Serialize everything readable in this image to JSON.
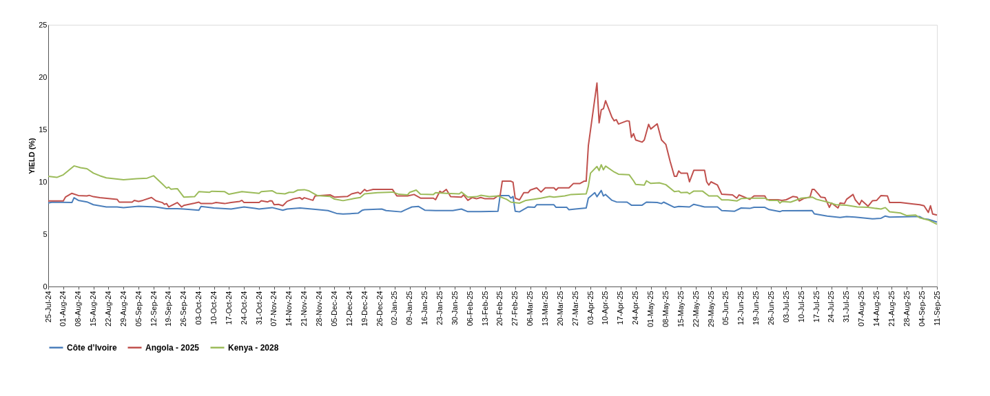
{
  "chart_data": {
    "type": "line",
    "ylabel": "YIELD (%)",
    "ylim": [
      0,
      25
    ],
    "yticks": [
      0,
      5,
      10,
      15,
      20,
      25
    ],
    "xlim": [
      "2024-07-25",
      "2025-09-11"
    ],
    "xticks": [
      {
        "value": "2024-07-25",
        "label": "25-Jul-24"
      },
      {
        "value": "2024-08-01",
        "label": "01-Aug-24"
      },
      {
        "value": "2024-08-08",
        "label": "08-Aug-24"
      },
      {
        "value": "2024-08-15",
        "label": "15-Aug-24"
      },
      {
        "value": "2024-08-22",
        "label": "22-Aug-24"
      },
      {
        "value": "2024-08-29",
        "label": "29-Aug-24"
      },
      {
        "value": "2024-09-05",
        "label": "05-Sep-24"
      },
      {
        "value": "2024-09-12",
        "label": "12-Sep-24"
      },
      {
        "value": "2024-09-19",
        "label": "19-Sep-24"
      },
      {
        "value": "2024-09-26",
        "label": "26-Sep-24"
      },
      {
        "value": "2024-10-03",
        "label": "03-Oct-24"
      },
      {
        "value": "2024-10-10",
        "label": "10-Oct-24"
      },
      {
        "value": "2024-10-17",
        "label": "17-Oct-24"
      },
      {
        "value": "2024-10-24",
        "label": "24-Oct-24"
      },
      {
        "value": "2024-10-31",
        "label": "31-Oct-24"
      },
      {
        "value": "2024-11-07",
        "label": "07-Nov-24"
      },
      {
        "value": "2024-11-14",
        "label": "14-Nov-24"
      },
      {
        "value": "2024-11-21",
        "label": "21-Nov-24"
      },
      {
        "value": "2024-11-28",
        "label": "28-Nov-24"
      },
      {
        "value": "2024-12-05",
        "label": "05-Dec-24"
      },
      {
        "value": "2024-12-12",
        "label": "12-Dec-24"
      },
      {
        "value": "2024-12-19",
        "label": "19-Dec-24"
      },
      {
        "value": "2024-12-26",
        "label": "26-Dec-24"
      },
      {
        "value": "2025-01-02",
        "label": "02-Jan-25"
      },
      {
        "value": "2025-01-09",
        "label": "09-Jan-25"
      },
      {
        "value": "2025-01-16",
        "label": "16-Jan-25"
      },
      {
        "value": "2025-01-23",
        "label": "23-Jan-25"
      },
      {
        "value": "2025-01-30",
        "label": "30-Jan-25"
      },
      {
        "value": "2025-02-06",
        "label": "06-Feb-25"
      },
      {
        "value": "2025-02-13",
        "label": "13-Feb-25"
      },
      {
        "value": "2025-02-20",
        "label": "20-Feb-25"
      },
      {
        "value": "2025-02-27",
        "label": "27-Feb-25"
      },
      {
        "value": "2025-03-06",
        "label": "06-Mar-25"
      },
      {
        "value": "2025-03-13",
        "label": "13-Mar-25"
      },
      {
        "value": "2025-03-20",
        "label": "20-Mar-25"
      },
      {
        "value": "2025-03-27",
        "label": "27-Mar-25"
      },
      {
        "value": "2025-04-03",
        "label": "03-Apr-25"
      },
      {
        "value": "2025-04-10",
        "label": "10-Apr-25"
      },
      {
        "value": "2025-04-17",
        "label": "17-Apr-25"
      },
      {
        "value": "2025-04-24",
        "label": "24-Apr-25"
      },
      {
        "value": "2025-05-01",
        "label": "01-May-25"
      },
      {
        "value": "2025-05-08",
        "label": "08-May-25"
      },
      {
        "value": "2025-05-15",
        "label": "15-May-25"
      },
      {
        "value": "2025-05-22",
        "label": "22-May-25"
      },
      {
        "value": "2025-05-29",
        "label": "29-May-25"
      },
      {
        "value": "2025-06-05",
        "label": "05-Jun-25"
      },
      {
        "value": "2025-06-12",
        "label": "12-Jun-25"
      },
      {
        "value": "2025-06-19",
        "label": "19-Jun-25"
      },
      {
        "value": "2025-06-26",
        "label": "26-Jun-25"
      },
      {
        "value": "2025-07-03",
        "label": "03-Jul-25"
      },
      {
        "value": "2025-07-10",
        "label": "10-Jul-25"
      },
      {
        "value": "2025-07-17",
        "label": "17-Jul-25"
      },
      {
        "value": "2025-07-24",
        "label": "24-Jul-25"
      },
      {
        "value": "2025-07-31",
        "label": "31-Jul-25"
      },
      {
        "value": "2025-08-07",
        "label": "07-Aug-25"
      },
      {
        "value": "2025-08-14",
        "label": "14-Aug-25"
      },
      {
        "value": "2025-08-21",
        "label": "21-Aug-25"
      },
      {
        "value": "2025-08-28",
        "label": "28-Aug-25"
      },
      {
        "value": "2025-09-04",
        "label": "04-Sep-25"
      },
      {
        "value": "2025-09-11",
        "label": "11-Sep-25"
      }
    ],
    "grid": false,
    "legend": "bottom",
    "series": [
      {
        "name": "Côte d’Ivoire",
        "color": "#4a7ebb",
        "x": [
          "2024-07-25",
          "2024-07-27",
          "2024-08-05",
          "2024-08-06",
          "2024-08-08",
          "2024-08-12",
          "2024-08-15",
          "2024-08-21",
          "2024-08-26",
          "2024-08-29",
          "2024-09-05",
          "2024-09-13",
          "2024-09-18",
          "2024-09-23",
          "2024-09-26",
          "2024-10-03",
          "2024-10-04",
          "2024-10-10",
          "2024-10-18",
          "2024-10-24",
          "2024-10-29",
          "2024-10-31",
          "2024-11-06",
          "2024-11-11",
          "2024-11-13",
          "2024-11-19",
          "2024-11-27",
          "2024-12-02",
          "2024-12-06",
          "2024-12-09",
          "2024-12-16",
          "2024-12-18",
          "2024-12-19",
          "2024-12-27",
          "2024-12-29",
          "2025-01-05",
          "2025-01-07",
          "2025-01-10",
          "2025-01-13",
          "2025-01-16",
          "2025-01-21",
          "2025-01-29",
          "2025-02-02",
          "2025-02-05",
          "2025-02-11",
          "2025-02-19",
          "2025-02-20",
          "2025-02-24",
          "2025-02-25",
          "2025-02-26",
          "2025-02-27",
          "2025-03-01",
          "2025-03-05",
          "2025-03-08",
          "2025-03-09",
          "2025-03-17",
          "2025-03-18",
          "2025-03-23",
          "2025-03-24",
          "2025-03-27",
          "2025-04-01",
          "2025-04-02",
          "2025-04-05",
          "2025-04-06",
          "2025-04-08",
          "2025-04-09",
          "2025-04-10",
          "2025-04-13",
          "2025-04-15",
          "2025-04-20",
          "2025-04-22",
          "2025-04-27",
          "2025-04-29",
          "2025-05-04",
          "2025-05-06",
          "2025-05-07",
          "2025-05-12",
          "2025-05-14",
          "2025-05-19",
          "2025-05-21",
          "2025-05-26",
          "2025-06-01",
          "2025-06-03",
          "2025-06-09",
          "2025-06-12",
          "2025-06-16",
          "2025-06-18",
          "2025-06-23",
          "2025-06-25",
          "2025-06-30",
          "2025-07-01",
          "2025-07-15",
          "2025-07-16",
          "2025-07-22",
          "2025-07-28",
          "2025-07-31",
          "2025-08-04",
          "2025-08-12",
          "2025-08-16",
          "2025-08-18",
          "2025-08-20",
          "2025-08-31",
          "2025-09-03",
          "2025-09-05",
          "2025-09-07",
          "2025-09-11"
        ],
        "values": [
          7.98,
          8.06,
          8.02,
          8.48,
          8.23,
          8.08,
          7.81,
          7.6,
          7.6,
          7.54,
          7.67,
          7.6,
          7.44,
          7.44,
          7.4,
          7.29,
          7.65,
          7.5,
          7.4,
          7.6,
          7.46,
          7.4,
          7.54,
          7.29,
          7.4,
          7.5,
          7.35,
          7.25,
          6.98,
          6.92,
          7.0,
          7.29,
          7.33,
          7.4,
          7.25,
          7.13,
          7.33,
          7.6,
          7.65,
          7.29,
          7.25,
          7.25,
          7.4,
          7.15,
          7.15,
          7.19,
          8.69,
          8.69,
          8.44,
          8.6,
          7.19,
          7.13,
          7.6,
          7.56,
          7.81,
          7.81,
          7.56,
          7.56,
          7.33,
          7.4,
          7.5,
          8.44,
          8.96,
          8.58,
          9.17,
          8.65,
          8.79,
          8.23,
          8.08,
          8.06,
          7.77,
          7.77,
          8.06,
          8.02,
          7.92,
          8.06,
          7.56,
          7.65,
          7.6,
          7.85,
          7.6,
          7.6,
          7.25,
          7.19,
          7.5,
          7.46,
          7.56,
          7.56,
          7.35,
          7.15,
          7.23,
          7.25,
          6.94,
          6.73,
          6.6,
          6.67,
          6.63,
          6.46,
          6.52,
          6.73,
          6.63,
          6.67,
          6.67,
          6.46,
          6.42,
          6.15
        ]
      },
      {
        "name": "Angola - 2025",
        "color": "#c0504d",
        "x": [
          "2024-07-25",
          "2024-08-01",
          "2024-08-02",
          "2024-08-05",
          "2024-08-08",
          "2024-08-12",
          "2024-08-13",
          "2024-08-15",
          "2024-08-18",
          "2024-08-26",
          "2024-08-27",
          "2024-09-02",
          "2024-09-03",
          "2024-09-05",
          "2024-09-07",
          "2024-09-11",
          "2024-09-13",
          "2024-09-16",
          "2024-09-17",
          "2024-09-18",
          "2024-09-19",
          "2024-09-23",
          "2024-09-25",
          "2024-09-26",
          "2024-10-01",
          "2024-10-03",
          "2024-10-04",
          "2024-10-09",
          "2024-10-11",
          "2024-10-15",
          "2024-10-18",
          "2024-10-22",
          "2024-10-23",
          "2024-10-24",
          "2024-10-31",
          "2024-11-01",
          "2024-11-04",
          "2024-11-05",
          "2024-11-06",
          "2024-11-07",
          "2024-11-09",
          "2024-11-11",
          "2024-11-13",
          "2024-11-16",
          "2024-11-19",
          "2024-11-20",
          "2024-11-21",
          "2024-11-25",
          "2024-11-26",
          "2024-12-03",
          "2024-12-05",
          "2024-12-11",
          "2024-12-13",
          "2024-12-16",
          "2024-12-17",
          "2024-12-19",
          "2024-12-20",
          "2024-12-23",
          "2025-01-01",
          "2025-01-03",
          "2025-01-08",
          "2025-01-11",
          "2025-01-14",
          "2025-01-20",
          "2025-01-21",
          "2025-01-23",
          "2025-01-24",
          "2025-01-26",
          "2025-01-28",
          "2025-02-02",
          "2025-02-03",
          "2025-02-05",
          "2025-02-07",
          "2025-02-09",
          "2025-02-11",
          "2025-02-13",
          "2025-02-17",
          "2025-02-19",
          "2025-02-20",
          "2025-02-21",
          "2025-02-25",
          "2025-02-26",
          "2025-02-27",
          "2025-03-01",
          "2025-03-03",
          "2025-03-05",
          "2025-03-06",
          "2025-03-09",
          "2025-03-11",
          "2025-03-13",
          "2025-03-17",
          "2025-03-18",
          "2025-03-19",
          "2025-03-24",
          "2025-03-26",
          "2025-03-29",
          "2025-03-31",
          "2025-04-01",
          "2025-04-02",
          "2025-04-06",
          "2025-04-07",
          "2025-04-08",
          "2025-04-09",
          "2025-04-10",
          "2025-04-13",
          "2025-04-14",
          "2025-04-15",
          "2025-04-16",
          "2025-04-20",
          "2025-04-21",
          "2025-04-22",
          "2025-04-23",
          "2025-04-24",
          "2025-04-27",
          "2025-04-28",
          "2025-04-30",
          "2025-05-01",
          "2025-05-04",
          "2025-05-06",
          "2025-05-08",
          "2025-05-10",
          "2025-05-12",
          "2025-05-13",
          "2025-05-14",
          "2025-05-15",
          "2025-05-18",
          "2025-05-19",
          "2025-05-21",
          "2025-05-26",
          "2025-05-27",
          "2025-05-28",
          "2025-05-29",
          "2025-06-01",
          "2025-06-03",
          "2025-06-08",
          "2025-06-10",
          "2025-06-11",
          "2025-06-16",
          "2025-06-18",
          "2025-06-23",
          "2025-06-24",
          "2025-06-29",
          "2025-07-01",
          "2025-07-03",
          "2025-07-06",
          "2025-07-08",
          "2025-07-09",
          "2025-07-11",
          "2025-07-14",
          "2025-07-15",
          "2025-07-16",
          "2025-07-18",
          "2025-07-19",
          "2025-07-21",
          "2025-07-23",
          "2025-07-24",
          "2025-07-27",
          "2025-07-28",
          "2025-07-30",
          "2025-07-31",
          "2025-08-03",
          "2025-08-04",
          "2025-08-06",
          "2025-08-07",
          "2025-08-10",
          "2025-08-12",
          "2025-08-14",
          "2025-08-16",
          "2025-08-19",
          "2025-08-20",
          "2025-08-25",
          "2025-08-31",
          "2025-09-03",
          "2025-09-05",
          "2025-09-07",
          "2025-09-08",
          "2025-09-09",
          "2025-09-11"
        ],
        "values": [
          8.17,
          8.17,
          8.54,
          8.9,
          8.69,
          8.65,
          8.71,
          8.58,
          8.48,
          8.33,
          8.06,
          8.06,
          8.23,
          8.13,
          8.23,
          8.5,
          8.19,
          8.02,
          7.85,
          7.92,
          7.6,
          8.02,
          7.6,
          7.75,
          7.96,
          8.06,
          7.92,
          7.92,
          8.02,
          7.92,
          8.02,
          8.13,
          8.23,
          8.02,
          8.02,
          8.19,
          8.08,
          8.19,
          8.17,
          7.81,
          7.85,
          7.71,
          8.13,
          8.38,
          8.48,
          8.33,
          8.48,
          8.23,
          8.65,
          8.75,
          8.54,
          8.6,
          8.85,
          9.0,
          8.85,
          9.27,
          9.12,
          9.27,
          9.27,
          8.65,
          8.65,
          8.79,
          8.44,
          8.44,
          8.29,
          9.1,
          8.96,
          9.27,
          8.58,
          8.54,
          8.75,
          8.23,
          8.5,
          8.38,
          8.5,
          8.38,
          8.38,
          8.65,
          8.69,
          10.06,
          10.06,
          9.96,
          8.44,
          8.27,
          8.96,
          8.96,
          9.21,
          9.42,
          9.02,
          9.42,
          9.42,
          9.21,
          9.42,
          9.42,
          9.83,
          9.83,
          10.06,
          10.06,
          13.44,
          19.44,
          15.63,
          16.88,
          16.98,
          17.75,
          16.15,
          15.83,
          15.94,
          15.52,
          15.83,
          15.79,
          14.25,
          14.6,
          14.0,
          13.79,
          14.0,
          15.5,
          15.04,
          15.54,
          14.0,
          13.58,
          11.96,
          10.52,
          10.52,
          11.04,
          10.83,
          10.83,
          10.0,
          11.1,
          11.1,
          10.0,
          9.69,
          10.0,
          9.69,
          8.81,
          8.75,
          8.44,
          8.75,
          8.33,
          8.65,
          8.65,
          8.29,
          8.29,
          8.23,
          8.29,
          8.6,
          8.54,
          8.17,
          8.4,
          8.54,
          9.27,
          9.27,
          8.81,
          8.54,
          8.48,
          7.56,
          7.98,
          7.5,
          7.98,
          7.92,
          8.33,
          8.79,
          8.29,
          7.81,
          8.23,
          7.67,
          8.19,
          8.23,
          8.69,
          8.65,
          8.02,
          8.02,
          7.88,
          7.81,
          7.71,
          7.08,
          7.71,
          6.92,
          6.83
        ]
      },
      {
        "name": "Kenya -  2028",
        "color": "#9bbb59",
        "x": [
          "2024-07-25",
          "2024-07-29",
          "2024-08-01",
          "2024-08-06",
          "2024-08-09",
          "2024-08-12",
          "2024-08-15",
          "2024-08-18",
          "2024-08-21",
          "2024-08-29",
          "2024-09-04",
          "2024-09-09",
          "2024-09-12",
          "2024-09-16",
          "2024-09-18",
          "2024-09-19",
          "2024-09-20",
          "2024-09-23",
          "2024-09-26",
          "2024-10-01",
          "2024-10-03",
          "2024-10-08",
          "2024-10-09",
          "2024-10-15",
          "2024-10-17",
          "2024-10-23",
          "2024-10-31",
          "2024-11-01",
          "2024-11-06",
          "2024-11-08",
          "2024-11-12",
          "2024-11-14",
          "2024-11-16",
          "2024-11-18",
          "2024-11-21",
          "2024-11-23",
          "2024-11-27",
          "2024-12-03",
          "2024-12-05",
          "2024-12-09",
          "2024-12-14",
          "2024-12-17",
          "2024-12-19",
          "2024-12-25",
          "2025-01-01",
          "2025-01-04",
          "2025-01-08",
          "2025-01-09",
          "2025-01-12",
          "2025-01-14",
          "2025-01-20",
          "2025-01-21",
          "2025-01-26",
          "2025-02-01",
          "2025-02-02",
          "2025-02-05",
          "2025-02-09",
          "2025-02-11",
          "2025-02-15",
          "2025-02-19",
          "2025-02-23",
          "2025-02-25",
          "2025-03-01",
          "2025-03-04",
          "2025-03-11",
          "2025-03-15",
          "2025-03-17",
          "2025-03-22",
          "2025-03-25",
          "2025-04-01",
          "2025-04-02",
          "2025-04-03",
          "2025-04-06",
          "2025-04-07",
          "2025-04-08",
          "2025-04-09",
          "2025-04-10",
          "2025-04-14",
          "2025-04-16",
          "2025-04-21",
          "2025-04-23",
          "2025-04-24",
          "2025-04-28",
          "2025-04-29",
          "2025-05-01",
          "2025-05-05",
          "2025-05-08",
          "2025-05-12",
          "2025-05-14",
          "2025-05-15",
          "2025-05-18",
          "2025-05-19",
          "2025-05-21",
          "2025-05-25",
          "2025-05-28",
          "2025-06-01",
          "2025-06-03",
          "2025-06-06",
          "2025-06-10",
          "2025-06-12",
          "2025-06-17",
          "2025-06-23",
          "2025-06-25",
          "2025-06-29",
          "2025-06-30",
          "2025-07-01",
          "2025-07-05",
          "2025-07-10",
          "2025-07-15",
          "2025-07-17",
          "2025-07-22",
          "2025-07-26",
          "2025-07-31",
          "2025-08-05",
          "2025-08-10",
          "2025-08-16",
          "2025-08-18",
          "2025-08-20",
          "2025-08-25",
          "2025-08-28",
          "2025-09-01",
          "2025-09-03",
          "2025-09-07",
          "2025-09-11"
        ],
        "values": [
          10.52,
          10.42,
          10.67,
          11.52,
          11.35,
          11.25,
          10.83,
          10.58,
          10.38,
          10.2,
          10.3,
          10.35,
          10.58,
          9.8,
          9.4,
          9.5,
          9.3,
          9.35,
          8.54,
          8.58,
          9.06,
          9.0,
          9.1,
          9.06,
          8.81,
          9.06,
          8.9,
          9.06,
          9.15,
          8.92,
          8.85,
          9.0,
          9.0,
          9.21,
          9.25,
          9.15,
          8.69,
          8.6,
          8.35,
          8.2,
          8.4,
          8.5,
          8.85,
          8.96,
          9.02,
          8.81,
          8.75,
          9.0,
          9.21,
          8.81,
          8.79,
          8.96,
          8.9,
          8.85,
          9.02,
          8.54,
          8.58,
          8.71,
          8.58,
          8.65,
          8.33,
          8.06,
          7.96,
          8.23,
          8.44,
          8.6,
          8.54,
          8.65,
          8.79,
          8.85,
          9.58,
          10.83,
          11.46,
          11.08,
          11.63,
          11.15,
          11.5,
          10.94,
          10.73,
          10.67,
          10.1,
          9.75,
          9.69,
          10.1,
          9.85,
          9.9,
          9.73,
          9.06,
          9.12,
          8.96,
          9.0,
          8.85,
          9.12,
          9.12,
          8.65,
          8.65,
          8.27,
          8.27,
          8.17,
          8.4,
          8.44,
          8.44,
          8.23,
          8.23,
          7.96,
          8.13,
          8.06,
          8.44,
          8.54,
          8.33,
          8.08,
          7.81,
          7.77,
          7.6,
          7.56,
          7.4,
          7.54,
          7.14,
          7.02,
          6.77,
          6.83,
          6.56,
          6.35,
          5.94
        ]
      }
    ]
  }
}
